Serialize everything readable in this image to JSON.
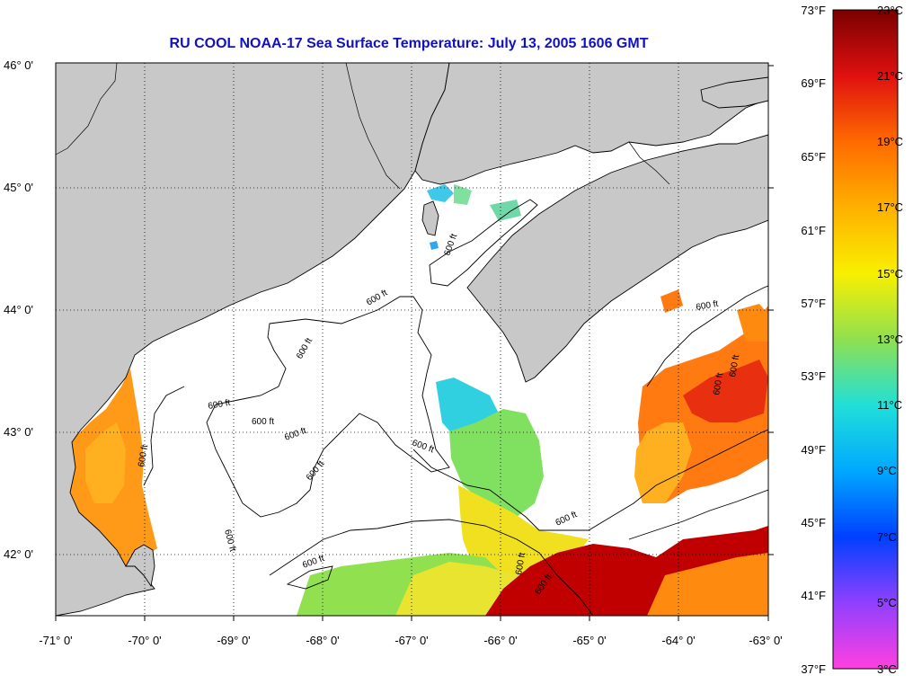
{
  "title": "RU COOL  NOAA-17  Sea Surface Temperature:  July 13, 2005 1606 GMT",
  "axes": {
    "x_ticks": [
      "-71° 0'",
      "-70° 0'",
      "-69° 0'",
      "-68° 0'",
      "-67° 0'",
      "-66° 0'",
      "-65° 0'",
      "-64° 0'",
      "-63° 0'"
    ],
    "y_ticks": [
      "46° 0'",
      "45° 0'",
      "44° 0'",
      "43° 0'",
      "42° 0'"
    ],
    "lon_range": [
      -71,
      -63
    ],
    "lat_range": [
      41.5,
      46.05
    ]
  },
  "contour_label": "600 ft",
  "colorbar": {
    "fahrenheit_labels": [
      "73°F",
      "69°F",
      "65°F",
      "61°F",
      "57°F",
      "53°F",
      "49°F",
      "45°F",
      "41°F",
      "37°F"
    ],
    "celsius_labels": [
      "23°C",
      "21°C",
      "19°C",
      "17°C",
      "15°C",
      "13°C",
      "11°C",
      "9°C",
      "7°C",
      "5°C",
      "3°C"
    ],
    "range_c": [
      3,
      23
    ],
    "stops": [
      {
        "c": 23,
        "color": "#7a0000"
      },
      {
        "c": 21,
        "color": "#e01010"
      },
      {
        "c": 19,
        "color": "#ff6a00"
      },
      {
        "c": 17,
        "color": "#ffb000"
      },
      {
        "c": 15,
        "color": "#f8f000"
      },
      {
        "c": 13,
        "color": "#90e050"
      },
      {
        "c": 11,
        "color": "#20e0d8"
      },
      {
        "c": 9,
        "color": "#00a8ff"
      },
      {
        "c": 7,
        "color": "#0040ff"
      },
      {
        "c": 5,
        "color": "#9040ff"
      },
      {
        "c": 3,
        "color": "#ff40e0"
      }
    ]
  },
  "colors": {
    "land": "#c8c8c8",
    "title": "#1010c8",
    "warm_core": "#b00000",
    "orange": "#ff8a10",
    "yellow": "#f0e020",
    "cyan": "#30d0e0"
  }
}
